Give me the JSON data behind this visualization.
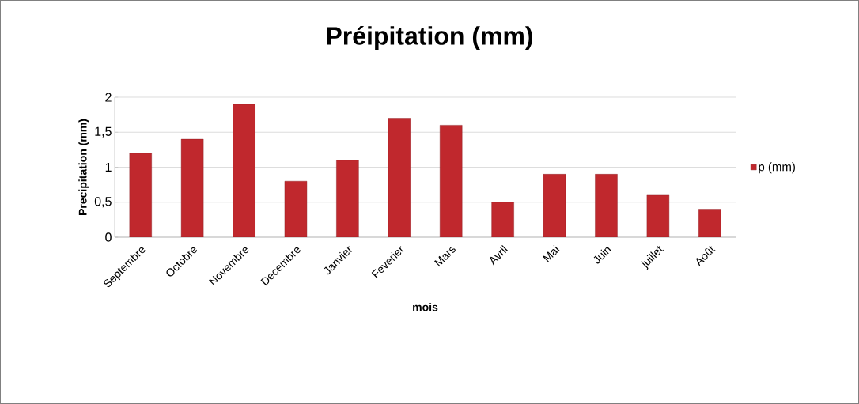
{
  "chart_data": {
    "type": "bar",
    "title": "Préipitation (mm)",
    "xlabel": "mois",
    "ylabel": "Precipitation (mm)",
    "categories": [
      "Septembre",
      "Octobre",
      "Novembre",
      "Decembre",
      "Janvier",
      "Feverier",
      "Mars",
      "Avril",
      "Mai",
      "Juin",
      "juillet",
      "Août"
    ],
    "series": [
      {
        "name": "p (mm)",
        "color": "#c0282d",
        "values": [
          1.2,
          1.4,
          1.9,
          0.8,
          1.1,
          1.7,
          1.6,
          0.5,
          0.9,
          0.9,
          0.6,
          0.4
        ]
      }
    ],
    "ylim": [
      0,
      2
    ],
    "yticks": [
      0,
      {
        "value": 0.5,
        "label": "0,5"
      },
      1,
      {
        "value": 1.5,
        "label": "1,5"
      },
      2
    ],
    "grid": "y",
    "legend": "right"
  }
}
